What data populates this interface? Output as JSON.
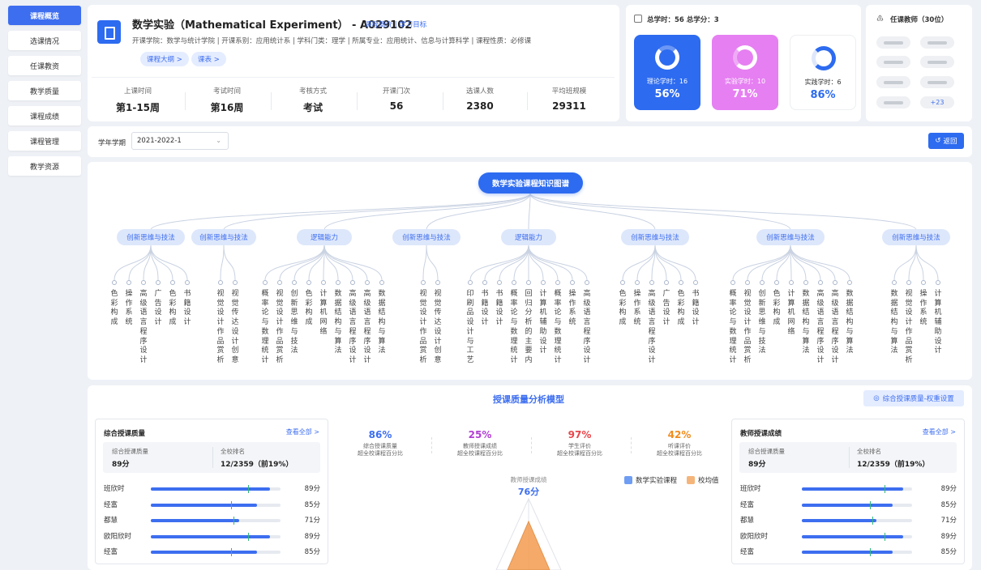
{
  "sidebar": {
    "items": [
      {
        "label": "课程概览",
        "active": true
      },
      {
        "label": "选课情况"
      },
      {
        "label": "任课教资"
      },
      {
        "label": "教学质量"
      },
      {
        "label": "课程成绩"
      },
      {
        "label": "课程管理"
      },
      {
        "label": "教学资源"
      }
    ]
  },
  "course": {
    "title": "数学实验（Mathematical Experiment） - A029102",
    "links": "课程简介 | 学习目标",
    "meta": "开课学院：数学与统计学院  |  开课系别：应用统计系  |  学科门类：理学  |  所属专业：应用统计、信息与计算科学  |  课程性质：必修课",
    "tag1": "课程大纲 >",
    "tag2": "课表 >",
    "stats": [
      {
        "label": "上课时间",
        "value": "第1-15周"
      },
      {
        "label": "考试时间",
        "value": "第16周"
      },
      {
        "label": "考核方式",
        "value": "考试"
      },
      {
        "label": "开课门次",
        "value": "56"
      },
      {
        "label": "选课人数",
        "value": "2380"
      },
      {
        "label": "平均班规模",
        "value": "29311"
      }
    ]
  },
  "hours": {
    "header": "总学时：56  总学分：3",
    "tiles": [
      {
        "label": "理论学时：16",
        "value": "56%",
        "percent": 56
      },
      {
        "label": "实验学时：10",
        "value": "71%",
        "percent": 71
      },
      {
        "label": "实践学时：6",
        "value": "86%",
        "percent": 86
      }
    ]
  },
  "teachers": {
    "header": "任课教师（30位）",
    "more": "+23"
  },
  "filter": {
    "term_label": "学年学期",
    "term_value": "2021-2022-1",
    "back": "返回"
  },
  "knowledge_map": {
    "root": "数学实验课程知识图谱",
    "categories": [
      {
        "label": "创新思维与技法",
        "leaves": [
          "色彩构成",
          "操作系统",
          "高级语言程序设计",
          "广告设计",
          "色彩构成",
          "书籍设计"
        ]
      },
      {
        "label": "创新思维与技法",
        "leaves": [
          "视觉设计作品赏析",
          "视觉传达设计创意"
        ]
      },
      {
        "label": "逻辑能力",
        "leaves": [
          "概率论与数理统计",
          "视觉设计作品赏析",
          "创新思维与技法",
          "色彩构成",
          "计算机网络",
          "数据结构与算法",
          "高级语言程序设计",
          "高级语言程序设计",
          "数据结构与算法"
        ]
      },
      {
        "label": "创新思维与技法",
        "leaves": [
          "视觉设计作品赏析",
          "视觉传达设计创意"
        ]
      },
      {
        "label": "逻辑能力",
        "leaves": [
          "印刷品设计与工艺",
          "书籍设计",
          "书籍设计",
          "概率论与数理统计",
          "回归分析的主要内",
          "计算机辅助设计",
          "概率论与数理统计",
          "操作系统",
          "高级语言程序设计"
        ]
      },
      {
        "label": "创新思维与技法",
        "leaves": [
          "色彩构成",
          "操作系统",
          "高级语言程序设计",
          "广告设计",
          "色彩构成",
          "书籍设计"
        ]
      },
      {
        "label": "创新思维与技法",
        "leaves": [
          "概率论与数理统计",
          "视觉设计作品赏析",
          "创新思维与技法",
          "色彩构成",
          "计算机网络",
          "数据结构与算法",
          "高级语言程序设计",
          "高级语言程序设计",
          "数据结构与算法"
        ]
      },
      {
        "label": "创新思维与技法",
        "leaves": [
          "数据结构与算法",
          "视觉设计作品赏析",
          "操作系统",
          "计算机辅助设计"
        ]
      }
    ]
  },
  "quality": {
    "title": "授课质量分析模型",
    "weight_button": "综合授课质量-权重设置",
    "left_panel": {
      "title": "综合授课质量",
      "view_all": "查看全部 >",
      "summary": [
        {
          "label": "综合授课质量",
          "value": "89分"
        },
        {
          "label": "全校排名",
          "value": "12/2359（前19%）"
        }
      ],
      "rows": [
        {
          "name": "班欣时",
          "score": "89分",
          "fraction": 0.92,
          "marker": 0.75
        },
        {
          "name": "经富",
          "score": "85分",
          "fraction": 0.82,
          "marker": 0.62
        },
        {
          "name": "都慧",
          "score": "71分",
          "fraction": 0.68,
          "marker": 0.64
        },
        {
          "name": "欧阳欣时",
          "score": "89分",
          "fraction": 0.92,
          "marker": 0.75
        },
        {
          "name": "经富",
          "score": "85分",
          "fraction": 0.82,
          "marker": 0.62
        }
      ]
    },
    "metrics": [
      {
        "value": "86%",
        "label1": "综合授课质量",
        "label2": "超全校课程百分比",
        "color": "#3d6ef0"
      },
      {
        "value": "25%",
        "label1": "教师授课成绩",
        "label2": "超全校课程百分比",
        "color": "#b23fd4"
      },
      {
        "value": "97%",
        "label1": "学生评价",
        "label2": "超全校课程百分比",
        "color": "#e8474c"
      },
      {
        "value": "42%",
        "label1": "听课评价",
        "label2": "超全校课程百分比",
        "color": "#f08c1e"
      }
    ],
    "radar": {
      "title": "教师授课成绩",
      "value": "76分",
      "legend": [
        {
          "label": "数学实验课程",
          "color": "#6f9df3"
        },
        {
          "label": "校均值",
          "color": "#f5b57a"
        }
      ]
    },
    "right_panel": {
      "title": "教师授课成绩",
      "view_all": "查看全部 >",
      "summary": [
        {
          "label": "综合授课质量",
          "value": "89分"
        },
        {
          "label": "全校排名",
          "value": "12/2359（前19%）"
        }
      ],
      "rows": [
        {
          "name": "班欣时",
          "score": "89分",
          "fraction": 0.92,
          "marker": 0.75
        },
        {
          "name": "经富",
          "score": "85分",
          "fraction": 0.82,
          "marker": 0.62
        },
        {
          "name": "都慧",
          "score": "71分",
          "fraction": 0.68,
          "marker": 0.64
        },
        {
          "name": "欧阳欣时",
          "score": "89分",
          "fraction": 0.92,
          "marker": 0.75
        },
        {
          "name": "经富",
          "score": "85分",
          "fraction": 0.82,
          "marker": 0.62
        }
      ]
    }
  }
}
